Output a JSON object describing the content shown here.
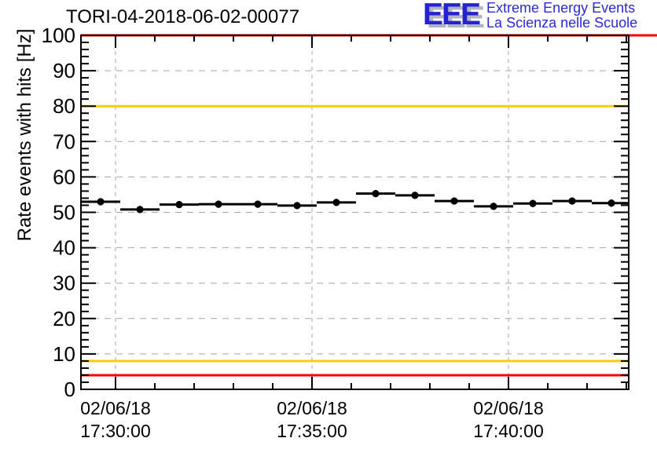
{
  "header": {
    "logo": {
      "acronym": "EEE",
      "line1": "Extreme Energy Events",
      "line2": "La Scienza nelle Scuole",
      "blue": "#2323cf",
      "text_blue": "#2a2ad8",
      "shadow_gray": "#b4b4c0"
    }
  },
  "chart_data": {
    "type": "scatter",
    "title": "TORI-04-2018-06-02-00077",
    "xlabel": "",
    "ylabel": "Rate events with hits [Hz]",
    "ylim": [
      0,
      100
    ],
    "y_major_step": 10,
    "y_minor_step": 2,
    "grid": "dashed",
    "legend": "none",
    "x_ticks": [
      {
        "date": "02/06/18",
        "time": "17:30:00",
        "min_from_17_30": 0
      },
      {
        "date": "02/06/18",
        "time": "17:35:00",
        "min_from_17_30": 5
      },
      {
        "date": "02/06/18",
        "time": "17:40:00",
        "min_from_17_30": 10
      }
    ],
    "x_minor_interval_minutes": 1,
    "x_range_min_from_17_30": [
      -0.88,
      13.06
    ],
    "threshold_lines": [
      {
        "y": 100,
        "color": "#ff0000",
        "extends_past_frame": true
      },
      {
        "y": 80,
        "color": "#ffcc00",
        "extends_past_frame": false
      },
      {
        "y": 8,
        "color": "#ffcc00",
        "extends_past_frame": false
      },
      {
        "y": 4,
        "color": "#ff0000",
        "extends_past_frame": false
      }
    ],
    "bin_width_minutes": 1,
    "rate_err_hz_approx": 1.0,
    "marker": {
      "shape": "filled-circle",
      "color": "#000000"
    },
    "points": [
      {
        "min_from_17_30": -0.38,
        "rate": 53.0
      },
      {
        "min_from_17_30": 0.62,
        "rate": 50.8
      },
      {
        "min_from_17_30": 1.62,
        "rate": 52.2
      },
      {
        "min_from_17_30": 2.62,
        "rate": 52.3
      },
      {
        "min_from_17_30": 3.62,
        "rate": 52.3
      },
      {
        "min_from_17_30": 4.62,
        "rate": 51.9
      },
      {
        "min_from_17_30": 5.62,
        "rate": 52.8
      },
      {
        "min_from_17_30": 6.62,
        "rate": 55.3
      },
      {
        "min_from_17_30": 7.62,
        "rate": 54.8
      },
      {
        "min_from_17_30": 8.62,
        "rate": 53.2
      },
      {
        "min_from_17_30": 9.62,
        "rate": 51.7
      },
      {
        "min_from_17_30": 10.62,
        "rate": 52.5
      },
      {
        "min_from_17_30": 11.62,
        "rate": 53.2
      },
      {
        "min_from_17_30": 12.62,
        "rate": 52.6
      }
    ]
  }
}
